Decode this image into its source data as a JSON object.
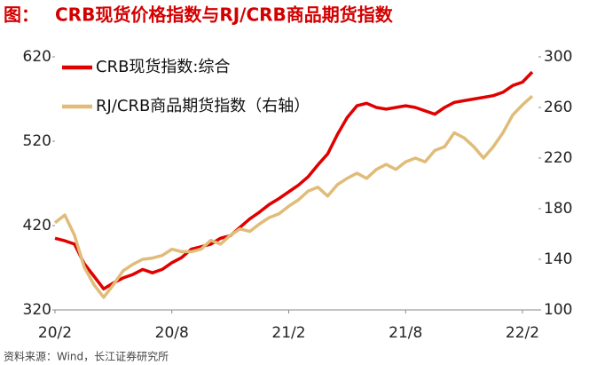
{
  "chart_data": {
    "type": "line",
    "title_prefix": "图：",
    "title": "CRB现货价格指数与RJ/CRB商品期货指数",
    "source": "资料来源：Wind，长江证券研究所",
    "categories": [
      "20/2",
      null,
      null,
      null,
      null,
      null,
      null,
      null,
      null,
      null,
      null,
      null,
      "20/8",
      null,
      null,
      null,
      null,
      null,
      null,
      null,
      null,
      null,
      null,
      null,
      "21/2",
      null,
      null,
      null,
      null,
      null,
      null,
      null,
      null,
      null,
      null,
      null,
      "21/8",
      null,
      null,
      null,
      null,
      null,
      null,
      null,
      null,
      null,
      null,
      null,
      "22/2",
      null
    ],
    "series": [
      {
        "name": "CRB现货指数:综合",
        "color": "#e00000",
        "axis": "y",
        "values": [
          405,
          402,
          398,
          375,
          360,
          345,
          352,
          358,
          362,
          368,
          364,
          368,
          376,
          382,
          392,
          395,
          398,
          405,
          408,
          418,
          428,
          436,
          445,
          452,
          460,
          468,
          478,
          492,
          505,
          528,
          548,
          562,
          565,
          560,
          558,
          560,
          562,
          560,
          556,
          552,
          560,
          566,
          568,
          570,
          572,
          574,
          578,
          586,
          590,
          602
        ]
      },
      {
        "name": "RJ/CRB商品期货指数（右轴）",
        "color": "#e0bc78",
        "axis": "y2",
        "values": [
          169,
          175,
          159,
          134,
          120,
          110,
          120,
          131,
          136,
          140,
          141,
          143,
          148,
          146,
          146,
          148,
          155,
          152,
          159,
          164,
          162,
          168,
          173,
          176,
          182,
          187,
          194,
          197,
          190,
          199,
          204,
          208,
          204,
          211,
          215,
          211,
          217,
          220,
          217,
          226,
          229,
          240,
          236,
          229,
          220,
          229,
          240,
          254,
          262,
          269
        ]
      }
    ],
    "ylim": [
      320,
      620
    ],
    "yticks": [
      320,
      420,
      520,
      620
    ],
    "y2lim": [
      100,
      300
    ],
    "y2ticks": [
      100,
      140,
      180,
      220,
      260,
      300
    ],
    "legend": "upper-left"
  }
}
